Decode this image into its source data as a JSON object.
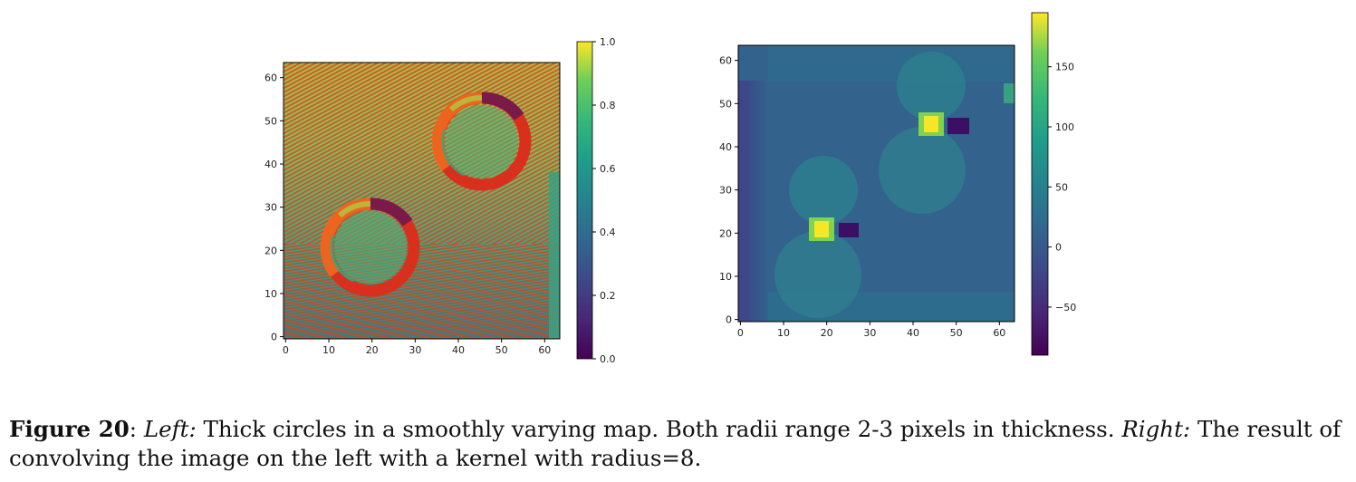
{
  "chart_data": [
    {
      "type": "heatmap",
      "title": "",
      "xlabel": "",
      "ylabel": "",
      "xlim": [
        0,
        63
      ],
      "ylim": [
        0,
        63
      ],
      "xticks": [
        "0",
        "10",
        "20",
        "30",
        "40",
        "50",
        "60"
      ],
      "yticks": [
        "0",
        "10",
        "20",
        "30",
        "40",
        "50",
        "60"
      ],
      "colorbar": {
        "range": [
          0.0,
          1.0
        ],
        "ticks": [
          "0.0",
          "0.2",
          "0.4",
          "0.6",
          "0.8",
          "1.0"
        ],
        "colormap": "viridis"
      },
      "features": [
        {
          "shape": "thick-circle",
          "center": [
            20,
            21
          ],
          "radius": 10,
          "thickness": 2.5
        },
        {
          "shape": "thick-circle",
          "center": [
            46,
            45
          ],
          "radius": 10,
          "thickness": 2.5
        }
      ],
      "background": "smoothly varying orientation field with red quiver arrows"
    },
    {
      "type": "heatmap",
      "title": "",
      "xlabel": "",
      "ylabel": "",
      "xlim": [
        0,
        63
      ],
      "ylim": [
        0,
        63
      ],
      "xticks": [
        "0",
        "10",
        "20",
        "30",
        "40",
        "50",
        "60"
      ],
      "yticks": [
        "0",
        "10",
        "20",
        "30",
        "40",
        "50",
        "60"
      ],
      "colorbar": {
        "range": [
          -90,
          195
        ],
        "ticks": [
          "150",
          "100",
          "50",
          "0",
          "−50"
        ],
        "colormap": "viridis"
      },
      "peaks": [
        {
          "x": 19,
          "y": 21,
          "value": 190
        },
        {
          "x": 44,
          "y": 45,
          "value": 190
        }
      ],
      "troughs": [
        {
          "x": 25,
          "y": 21,
          "value": -60
        },
        {
          "x": 50,
          "y": 45,
          "value": -60
        }
      ]
    }
  ],
  "caption": {
    "label": "Figure 20",
    "left_label": "Left:",
    "left_text": "Thick circles in a smoothly varying map. Both radii range 2-3 pixels in thickness.",
    "right_label": "Right:",
    "right_text": "The result of convolving the image on the left with a kernel with radius=8."
  }
}
